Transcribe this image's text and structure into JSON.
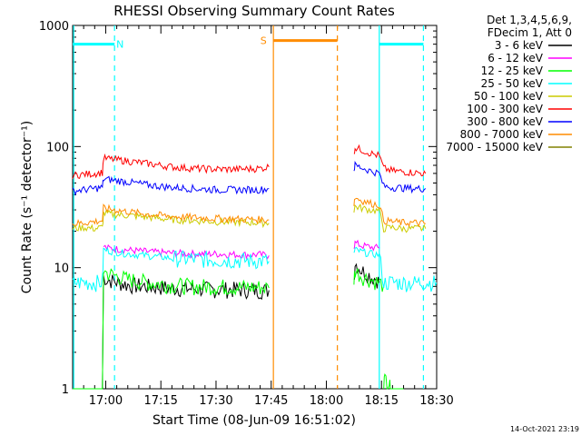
{
  "chart_data": {
    "type": "line",
    "title": "RHESSI Observing Summary Count Rates",
    "xlabel": "Start Time (08-Jun-09 16:51:02)",
    "ylabel": "Count Rate (s⁻¹ detector⁻¹)",
    "yscale": "log",
    "ylim": [
      1,
      1000
    ],
    "xlim_minutes": [
      16.85,
      18.5
    ],
    "x_ticks": [
      {
        "label": "17:00",
        "minute": 17.0
      },
      {
        "label": "17:15",
        "minute": 17.25
      },
      {
        "label": "17:30",
        "minute": 17.5
      },
      {
        "label": "17:45",
        "minute": 17.75
      },
      {
        "label": "18:00",
        "minute": 18.0
      },
      {
        "label": "18:15",
        "minute": 18.25
      },
      {
        "label": "18:30",
        "minute": 18.5
      }
    ],
    "y_ticks": [
      {
        "label": "1",
        "value": 1
      },
      {
        "label": "10",
        "value": 10
      },
      {
        "label": "100",
        "value": 100
      },
      {
        "label": "1000",
        "value": 1000
      }
    ],
    "legend_header": [
      "Det 1,3,4,5,6,9,",
      "FDecim 1, Att 0"
    ],
    "legend_position": "right",
    "timestamp": "14-Oct-2021 23:19",
    "grid": false,
    "series": [
      {
        "name": "3 - 6 keV",
        "color": "#000000",
        "segments": [
          {
            "x": [
              16.85,
              16.985,
              16.99,
              17.005,
              17.1,
              17.2,
              17.3,
              17.4,
              17.5,
              17.6,
              17.7,
              17.74
            ],
            "y": [
              1,
              1,
              8.5,
              8.0,
              7.2,
              7.0,
              6.8,
              6.7,
              6.6,
              6.6,
              6.5,
              6.5
            ]
          },
          {
            "x": [
              18.125,
              18.13,
              18.16,
              18.18,
              18.2,
              18.23,
              18.24
            ],
            "y": [
              8.0,
              11.0,
              9.5,
              9.0,
              8.5,
              8.0,
              7.5
            ]
          }
        ]
      },
      {
        "name": "6 - 12 keV",
        "color": "#ff00ff",
        "segments": [
          {
            "x": [
              16.99,
              17.005,
              17.1,
              17.2,
              17.3,
              17.4,
              17.5,
              17.6,
              17.7,
              17.74
            ],
            "y": [
              15,
              14.5,
              14.0,
              13.5,
              13.2,
              13.0,
              13.0,
              12.8,
              12.8,
              12.6
            ]
          },
          {
            "x": [
              18.125,
              18.13,
              18.16,
              18.2,
              18.24
            ],
            "y": [
              15,
              16,
              15.2,
              14.8,
              14.5
            ]
          }
        ]
      },
      {
        "name": "12 - 25 keV",
        "color": "#00ff00",
        "segments": [
          {
            "x": [
              16.85,
              16.985,
              16.99,
              17.005,
              17.1,
              17.2,
              17.3,
              17.4,
              17.5,
              17.6,
              17.7,
              17.74
            ],
            "y": [
              1,
              1,
              9.5,
              9.0,
              8.0,
              7.5,
              7.2,
              7.0,
              7.0,
              6.9,
              6.9,
              6.8
            ]
          },
          {
            "x": [
              18.125,
              18.13,
              18.16,
              18.2,
              18.24,
              18.26
            ],
            "y": [
              8.0,
              9.5,
              8.5,
              8.0,
              7.5,
              7.2
            ]
          },
          {
            "x": [
              18.26,
              18.265,
              18.275,
              18.285,
              18.29,
              18.35
            ],
            "y": [
              1,
              1.2,
              1.05,
              1.1,
              1,
              1
            ]
          }
        ]
      },
      {
        "name": "25 - 50 keV",
        "color": "#00ffff",
        "segments": [
          {
            "x": [
              16.85,
              16.9,
              16.95,
              16.985,
              16.99,
              17.1,
              17.2,
              17.3,
              17.4,
              17.5,
              17.6,
              17.7,
              17.74
            ],
            "y": [
              7.5,
              7.6,
              7.5,
              7.6,
              14.0,
              13.0,
              12.5,
              12.0,
              11.8,
              11.6,
              11.5,
              11.4,
              11.3
            ]
          },
          {
            "x": [
              18.125,
              18.13,
              18.16,
              18.2,
              18.24,
              18.26,
              18.3,
              18.35,
              18.4,
              18.45,
              18.5
            ],
            "y": [
              13.0,
              14.0,
              13.5,
              13.0,
              12.8,
              7.5,
              7.6,
              7.5,
              7.5,
              7.6,
              7.5
            ]
          }
        ]
      },
      {
        "name": "50 - 100 keV",
        "color": "#cccc00",
        "segments": [
          {
            "x": [
              16.85,
              16.9,
              16.95,
              16.985,
              16.99,
              17.1,
              17.2,
              17.3,
              17.4,
              17.5,
              17.6,
              17.7,
              17.74
            ],
            "y": [
              21,
              21.5,
              21,
              21.5,
              28,
              27,
              26,
              25,
              24.5,
              24,
              23.8,
              23.5,
              23.3
            ]
          },
          {
            "x": [
              18.125,
              18.13,
              18.16,
              18.2,
              18.24,
              18.26,
              18.3,
              18.35,
              18.4,
              18.45
            ],
            "y": [
              30,
              32,
              31,
              30,
              29.5,
              21,
              21.5,
              21,
              21,
              21
            ]
          }
        ]
      },
      {
        "name": "100 - 300 keV",
        "color": "#ff0000",
        "segments": [
          {
            "x": [
              16.85,
              16.9,
              16.95,
              16.985,
              16.99,
              17.1,
              17.2,
              17.3,
              17.4,
              17.5,
              17.6,
              17.7,
              17.74
            ],
            "y": [
              58,
              59,
              60,
              61,
              80,
              76,
              72,
              68,
              66,
              65,
              65,
              66,
              68
            ]
          },
          {
            "x": [
              18.125,
              18.13,
              18.16,
              18.2,
              18.24,
              18.26,
              18.3,
              18.35,
              18.4,
              18.45
            ],
            "y": [
              90,
              98,
              94,
              88,
              84,
              66,
              63,
              62,
              61,
              60
            ]
          }
        ]
      },
      {
        "name": "300 - 800 keV",
        "color": "#0000ff",
        "segments": [
          {
            "x": [
              16.85,
              16.9,
              16.95,
              16.985,
              16.99,
              17.1,
              17.2,
              17.3,
              17.4,
              17.5,
              17.6,
              17.7,
              17.74
            ],
            "y": [
              43,
              44,
              45,
              46,
              54,
              51,
              48,
              46,
              45,
              44,
              44,
              44,
              45
            ]
          },
          {
            "x": [
              18.125,
              18.13,
              18.16,
              18.2,
              18.24,
              18.26,
              18.3,
              18.35,
              18.4,
              18.45
            ],
            "y": [
              65,
              70,
              67,
              63,
              60,
              47,
              46,
              45.5,
              45,
              45
            ]
          }
        ]
      },
      {
        "name": "800 - 7000 keV",
        "color": "#ff8c00",
        "segments": [
          {
            "x": [
              16.85,
              16.9,
              16.95,
              16.985,
              16.99,
              17.1,
              17.2,
              17.3,
              17.4,
              17.5,
              17.6,
              17.7,
              17.74
            ],
            "y": [
              23,
              23.5,
              24,
              24.5,
              31,
              29,
              27.5,
              26.5,
              26,
              25.5,
              25.2,
              25,
              24.8
            ]
          },
          {
            "x": [
              18.125,
              18.13,
              18.16,
              18.2,
              18.24,
              18.26,
              18.3,
              18.35,
              18.4,
              18.45
            ],
            "y": [
              34,
              38,
              36,
              34,
              33,
              24.5,
              24,
              23.5,
              23.5,
              23
            ]
          }
        ]
      },
      {
        "name": "7000 - 15000 keV",
        "color": "#808000",
        "segments": []
      }
    ],
    "annotations": [
      {
        "label": "N",
        "color": "#00ffff",
        "bar": [
          16.85,
          17.04
        ],
        "bar_y": 700,
        "label_x": 17.065
      },
      {
        "label": "S",
        "color": "#ff8c00",
        "bar": [
          17.76,
          18.05
        ],
        "bar_y": 750,
        "label_x": 17.715
      },
      {
        "label": "",
        "color": "#00ffff",
        "bar": [
          18.24,
          18.44
        ],
        "bar_y": 700,
        "label_x": null
      }
    ],
    "markers": [
      {
        "x": 16.855,
        "color": "#00ffff",
        "style": "solid"
      },
      {
        "x": 17.04,
        "color": "#00ffff",
        "style": "dashed"
      },
      {
        "x": 17.76,
        "color": "#ff8c00",
        "style": "solid"
      },
      {
        "x": 18.05,
        "color": "#ff8c00",
        "style": "dashed"
      },
      {
        "x": 18.24,
        "color": "#00ffff",
        "style": "solid"
      },
      {
        "x": 18.44,
        "color": "#00ffff",
        "style": "dashed"
      }
    ]
  }
}
